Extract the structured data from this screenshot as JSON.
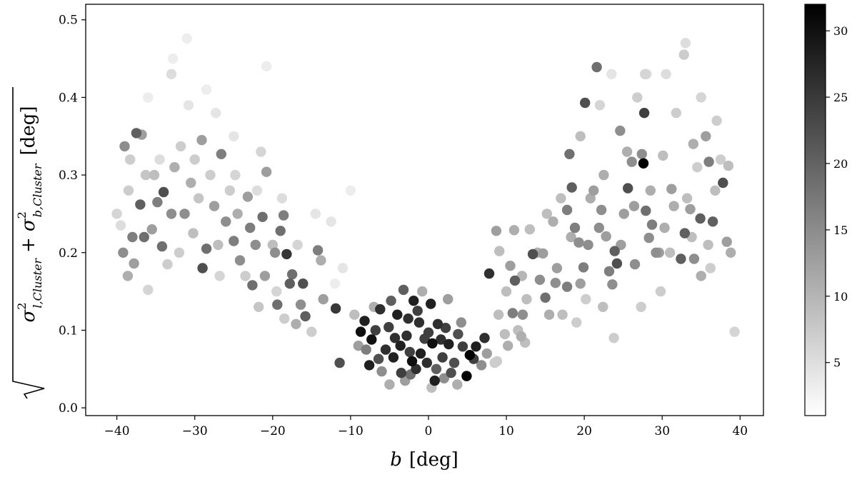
{
  "chart_data": {
    "type": "scatter",
    "title": "",
    "xlabel_var": "b",
    "xlabel_unit": "[deg]",
    "ylabel": "√(σ²_{l,Cluster} + σ²_{b,Cluster}) [deg]",
    "ylabel_parts": {
      "sigma": "σ",
      "sup": "2",
      "sub_l": "l,Cluster",
      "sub_b": "b,Cluster",
      "plus": "+",
      "unit": "[deg]"
    },
    "xlim": [
      -44,
      43
    ],
    "ylim": [
      -0.01,
      0.52
    ],
    "xticks": [
      -40,
      -30,
      -20,
      -10,
      0,
      10,
      20,
      30,
      40
    ],
    "xtick_labels": [
      "−40",
      "−30",
      "−20",
      "−10",
      "0",
      "10",
      "20",
      "30",
      "40"
    ],
    "yticks": [
      0.0,
      0.1,
      0.2,
      0.3,
      0.4,
      0.5
    ],
    "ytick_labels": [
      "0.0",
      "0.1",
      "0.2",
      "0.3",
      "0.4",
      "0.5"
    ],
    "grid": false,
    "colorbar": {
      "range": [
        1,
        32
      ],
      "ticks": [
        5,
        10,
        15,
        20,
        25,
        30
      ],
      "tick_labels": [
        "5",
        "10",
        "15",
        "20",
        "25",
        "30"
      ],
      "colormap": "Greys"
    },
    "point_colors": {
      "low": "#ffffff",
      "high": "#000000"
    },
    "point_columns": [
      "x",
      "y",
      "c"
    ],
    "points": [
      [
        -37.5,
        0.354,
        20
      ],
      [
        -39,
        0.337,
        14
      ],
      [
        -37,
        0.262,
        20
      ],
      [
        -38,
        0.22,
        16
      ],
      [
        -39.2,
        0.2,
        14
      ],
      [
        -37.8,
        0.186,
        12
      ],
      [
        -38.6,
        0.17,
        10
      ],
      [
        -36.5,
        0.22,
        18
      ],
      [
        -35.5,
        0.23,
        12
      ],
      [
        -36.8,
        0.352,
        12
      ],
      [
        -34,
        0.278,
        22
      ],
      [
        -34.8,
        0.265,
        16
      ],
      [
        -33,
        0.25,
        14
      ],
      [
        -34.2,
        0.208,
        18
      ],
      [
        -32.6,
        0.31,
        10
      ],
      [
        -31.3,
        0.25,
        14
      ],
      [
        -30.5,
        0.29,
        10
      ],
      [
        -29.1,
        0.345,
        12
      ],
      [
        -28.5,
        0.205,
        18
      ],
      [
        -29,
        0.18,
        22
      ],
      [
        -27.5,
        0.26,
        12
      ],
      [
        -26.6,
        0.327,
        16
      ],
      [
        -26,
        0.24,
        14
      ],
      [
        -25,
        0.215,
        16
      ],
      [
        -24.2,
        0.19,
        14
      ],
      [
        -23.2,
        0.272,
        12
      ],
      [
        -22.9,
        0.232,
        16
      ],
      [
        -22.2,
        0.21,
        14
      ],
      [
        -22.6,
        0.158,
        18
      ],
      [
        -21.3,
        0.246,
        18
      ],
      [
        -21,
        0.17,
        12
      ],
      [
        -20.8,
        0.304,
        12
      ],
      [
        -19.7,
        0.2,
        14
      ],
      [
        -19.4,
        0.133,
        18
      ],
      [
        -18.6,
        0.248,
        16
      ],
      [
        -18.2,
        0.198,
        25
      ],
      [
        -17.5,
        0.172,
        18
      ],
      [
        -17.8,
        0.16,
        20
      ],
      [
        -16.4,
        0.133,
        14
      ],
      [
        -15.8,
        0.118,
        20
      ],
      [
        -17,
        0.108,
        10
      ],
      [
        -16.1,
        0.16,
        22
      ],
      [
        -19,
        0.228,
        18
      ],
      [
        -24.5,
        0.25,
        10
      ],
      [
        -30.2,
        0.225,
        8
      ],
      [
        -35.2,
        0.3,
        8
      ],
      [
        -32,
        0.2,
        6
      ],
      [
        -33.5,
        0.185,
        6
      ],
      [
        -27,
        0.21,
        8
      ],
      [
        -20,
        0.21,
        8
      ],
      [
        -28,
        0.3,
        6
      ],
      [
        -25.5,
        0.28,
        6
      ],
      [
        -31.8,
        0.337,
        6
      ],
      [
        -36,
        0.152,
        5
      ],
      [
        -38.3,
        0.32,
        6
      ],
      [
        -38.5,
        0.28,
        6
      ],
      [
        -36.3,
        0.3,
        7
      ],
      [
        -29.5,
        0.27,
        7
      ],
      [
        -21.8,
        0.13,
        7
      ],
      [
        -18.5,
        0.115,
        6
      ],
      [
        -23.5,
        0.17,
        6
      ],
      [
        -26.8,
        0.17,
        5
      ],
      [
        -14.2,
        0.203,
        16
      ],
      [
        -13.8,
        0.19,
        10
      ],
      [
        -13.5,
        0.14,
        12
      ],
      [
        -15,
        0.098,
        6
      ],
      [
        -24.8,
        0.3,
        5
      ],
      [
        -21.5,
        0.33,
        5
      ],
      [
        -30,
        0.32,
        6
      ],
      [
        -40,
        0.25,
        5
      ],
      [
        -33,
        0.43,
        4
      ],
      [
        -32.8,
        0.45,
        2
      ],
      [
        -20.8,
        0.44,
        2
      ],
      [
        -31,
        0.476,
        2
      ],
      [
        -28.5,
        0.41,
        2
      ],
      [
        -36,
        0.4,
        2
      ],
      [
        -27.3,
        0.38,
        3
      ],
      [
        -12.5,
        0.24,
        3
      ],
      [
        -10,
        0.28,
        2
      ],
      [
        -11,
        0.18,
        3
      ],
      [
        -14.5,
        0.25,
        3
      ],
      [
        -12,
        0.16,
        2
      ],
      [
        -39.5,
        0.235,
        4
      ],
      [
        -34.5,
        0.32,
        4
      ],
      [
        -30.8,
        0.39,
        3
      ],
      [
        -25,
        0.35,
        3
      ],
      [
        -22,
        0.28,
        4
      ],
      [
        -19.5,
        0.15,
        5
      ],
      [
        -16.8,
        0.21,
        5
      ],
      [
        -18.8,
        0.27,
        4
      ],
      [
        -11.9,
        0.128,
        25
      ],
      [
        -11.4,
        0.058,
        22
      ],
      [
        -8.7,
        0.098,
        30
      ],
      [
        -8.2,
        0.112,
        28
      ],
      [
        -7.3,
        0.088,
        30
      ],
      [
        -7.6,
        0.055,
        28
      ],
      [
        -6.4,
        0.063,
        22
      ],
      [
        -6.2,
        0.127,
        26
      ],
      [
        -5.1,
        0.104,
        24
      ],
      [
        -4.8,
        0.138,
        20
      ],
      [
        -4,
        0.12,
        28
      ],
      [
        -3.2,
        0.152,
        20
      ],
      [
        -2.8,
        0.093,
        26
      ],
      [
        -2.4,
        0.072,
        24
      ],
      [
        -1.9,
        0.138,
        28
      ],
      [
        -1.2,
        0.11,
        26
      ],
      [
        -0.5,
        0.089,
        24
      ],
      [
        0.3,
        0.134,
        28
      ],
      [
        0.5,
        0.083,
        30
      ],
      [
        1.2,
        0.108,
        26
      ],
      [
        2.2,
        0.103,
        24
      ],
      [
        2.6,
        0.082,
        28
      ],
      [
        3.3,
        0.058,
        22
      ],
      [
        4.4,
        0.079,
        24
      ],
      [
        4.9,
        0.041,
        32
      ],
      [
        5.3,
        0.068,
        32
      ],
      [
        5.8,
        0.063,
        24
      ],
      [
        6.1,
        0.079,
        28
      ],
      [
        7.2,
        0.09,
        26
      ],
      [
        -3.5,
        0.045,
        24
      ],
      [
        -1.6,
        0.05,
        26
      ],
      [
        0.8,
        0.035,
        28
      ],
      [
        -5.5,
        0.075,
        26
      ],
      [
        -4.5,
        0.065,
        28
      ],
      [
        -3.6,
        0.08,
        28
      ],
      [
        -2.1,
        0.06,
        30
      ],
      [
        -1,
        0.07,
        28
      ],
      [
        -0.2,
        0.058,
        26
      ],
      [
        1.8,
        0.065,
        24
      ],
      [
        2.9,
        0.045,
        22
      ],
      [
        3.8,
        0.095,
        22
      ],
      [
        -6.8,
        0.1,
        24
      ],
      [
        -2.6,
        0.115,
        26
      ],
      [
        0,
        0.097,
        24
      ],
      [
        1.6,
        0.088,
        26
      ],
      [
        -4.3,
        0.09,
        26
      ],
      [
        -1.4,
        0.125,
        24
      ],
      [
        -8,
        0.075,
        16
      ],
      [
        -6,
        0.047,
        14
      ],
      [
        -3,
        0.035,
        12
      ],
      [
        2,
        0.038,
        14
      ],
      [
        3.7,
        0.03,
        10
      ],
      [
        6.8,
        0.055,
        14
      ],
      [
        7.5,
        0.07,
        12
      ],
      [
        -9,
        0.08,
        12
      ],
      [
        -5,
        0.03,
        10
      ],
      [
        0.4,
        0.026,
        8
      ],
      [
        4.2,
        0.11,
        14
      ],
      [
        2.5,
        0.14,
        12
      ],
      [
        -0.8,
        0.15,
        10
      ],
      [
        -7,
        0.13,
        10
      ],
      [
        -9.5,
        0.12,
        8
      ],
      [
        8.5,
        0.058,
        6
      ],
      [
        1,
        0.05,
        20
      ],
      [
        -2.3,
        0.043,
        18
      ],
      [
        7.8,
        0.173,
        26
      ],
      [
        8.7,
        0.228,
        12
      ],
      [
        9.1,
        0.202,
        8
      ],
      [
        10.5,
        0.183,
        12
      ],
      [
        10.8,
        0.122,
        16
      ],
      [
        11,
        0.229,
        10
      ],
      [
        11.1,
        0.164,
        20
      ],
      [
        11.9,
        0.092,
        10
      ],
      [
        12.4,
        0.084,
        8
      ],
      [
        12.1,
        0.12,
        14
      ],
      [
        13.4,
        0.198,
        22
      ],
      [
        14.3,
        0.165,
        14
      ],
      [
        14.7,
        0.199,
        12
      ],
      [
        15,
        0.142,
        18
      ],
      [
        16.3,
        0.161,
        14
      ],
      [
        17.8,
        0.156,
        16
      ],
      [
        18.1,
        0.327,
        18
      ],
      [
        18.4,
        0.284,
        20
      ],
      [
        18.8,
        0.232,
        16
      ],
      [
        19.3,
        0.213,
        14
      ],
      [
        19.9,
        0.181,
        16
      ],
      [
        20.1,
        0.393,
        22
      ],
      [
        21.2,
        0.28,
        12
      ],
      [
        21.6,
        0.439,
        18
      ],
      [
        22.2,
        0.255,
        14
      ],
      [
        22.8,
        0.221,
        12
      ],
      [
        23.2,
        0.176,
        16
      ],
      [
        23.6,
        0.159,
        14
      ],
      [
        23.9,
        0.202,
        20
      ],
      [
        24.2,
        0.186,
        22
      ],
      [
        24.6,
        0.357,
        14
      ],
      [
        25.1,
        0.25,
        12
      ],
      [
        25.6,
        0.283,
        22
      ],
      [
        26.1,
        0.317,
        14
      ],
      [
        26.4,
        0.26,
        12
      ],
      [
        27.4,
        0.327,
        14
      ],
      [
        27.6,
        0.315,
        32
      ],
      [
        27.7,
        0.38,
        24
      ],
      [
        27.9,
        0.254,
        18
      ],
      [
        28.3,
        0.219,
        14
      ],
      [
        28.7,
        0.236,
        16
      ],
      [
        29.6,
        0.2,
        12
      ],
      [
        30.3,
        0.232,
        10
      ],
      [
        31.2,
        0.282,
        12
      ],
      [
        32.4,
        0.192,
        20
      ],
      [
        32.9,
        0.225,
        20
      ],
      [
        33.6,
        0.256,
        12
      ],
      [
        34.1,
        0.192,
        14
      ],
      [
        34.9,
        0.244,
        20
      ],
      [
        35.6,
        0.35,
        12
      ],
      [
        36,
        0.317,
        16
      ],
      [
        36.5,
        0.24,
        20
      ],
      [
        37.8,
        0.29,
        22
      ],
      [
        38.3,
        0.214,
        12
      ],
      [
        38.8,
        0.2,
        10
      ],
      [
        39.3,
        0.098,
        5
      ],
      [
        38.5,
        0.312,
        8
      ],
      [
        37,
        0.37,
        6
      ],
      [
        35,
        0.4,
        5
      ],
      [
        33,
        0.47,
        4
      ],
      [
        32.8,
        0.455,
        6
      ],
      [
        30.5,
        0.43,
        4
      ],
      [
        28,
        0.43,
        4
      ],
      [
        27.8,
        0.43,
        5
      ],
      [
        23.5,
        0.43,
        3
      ],
      [
        22,
        0.39,
        5
      ],
      [
        19.5,
        0.35,
        8
      ],
      [
        17,
        0.27,
        8
      ],
      [
        16,
        0.24,
        10
      ],
      [
        15.2,
        0.25,
        8
      ],
      [
        14,
        0.2,
        10
      ],
      [
        13,
        0.23,
        8
      ],
      [
        12,
        0.17,
        9
      ],
      [
        10,
        0.15,
        8
      ],
      [
        9,
        0.12,
        8
      ],
      [
        17.8,
        0.255,
        16
      ],
      [
        20.5,
        0.21,
        14
      ],
      [
        21.9,
        0.232,
        14
      ],
      [
        19.5,
        0.16,
        12
      ],
      [
        24.7,
        0.21,
        12
      ],
      [
        26.5,
        0.185,
        14
      ],
      [
        29.2,
        0.2,
        14
      ],
      [
        31.5,
        0.26,
        10
      ],
      [
        34,
        0.34,
        10
      ],
      [
        30.1,
        0.325,
        8
      ],
      [
        33.2,
        0.27,
        8
      ],
      [
        35.9,
        0.21,
        8
      ],
      [
        36.8,
        0.28,
        8
      ],
      [
        28.5,
        0.28,
        10
      ],
      [
        25.5,
        0.33,
        10
      ],
      [
        22.5,
        0.3,
        10
      ],
      [
        20.8,
        0.27,
        10
      ],
      [
        18.3,
        0.22,
        10
      ],
      [
        16.5,
        0.18,
        12
      ],
      [
        15.5,
        0.12,
        10
      ],
      [
        17.2,
        0.12,
        8
      ],
      [
        19,
        0.11,
        6
      ],
      [
        20.2,
        0.14,
        6
      ],
      [
        23.8,
        0.09,
        6
      ],
      [
        22.4,
        0.13,
        8
      ],
      [
        12.6,
        0.14,
        8
      ],
      [
        11.5,
        0.1,
        8
      ],
      [
        10.2,
        0.08,
        10
      ],
      [
        9.8,
        0.095,
        8
      ],
      [
        8.8,
        0.06,
        6
      ],
      [
        26.8,
        0.4,
        6
      ],
      [
        31.8,
        0.38,
        6
      ],
      [
        34.5,
        0.31,
        6
      ],
      [
        37.5,
        0.32,
        6
      ],
      [
        36.2,
        0.18,
        6
      ],
      [
        29.8,
        0.15,
        6
      ],
      [
        27.3,
        0.13,
        6
      ],
      [
        31,
        0.2,
        8
      ],
      [
        33.8,
        0.22,
        8
      ],
      [
        35,
        0.17,
        10
      ]
    ]
  }
}
